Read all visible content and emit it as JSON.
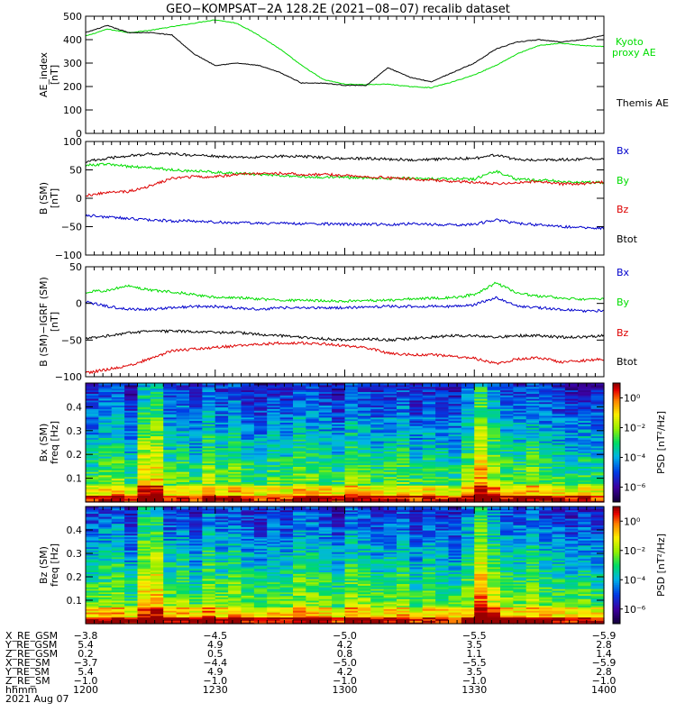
{
  "title": "GEO−KOMPSAT−2A 128.2E (2021−08−07) recalib dataset",
  "chart_data": [
    {
      "type": "line",
      "id": "ae",
      "ylabel": "AE_index [nT]",
      "ylabel_lines": [
        "AE_index",
        "[nT]"
      ],
      "ylim": [
        0,
        500
      ],
      "yticks": [
        0,
        100,
        200,
        300,
        400,
        500
      ],
      "x": [
        0,
        5,
        10,
        15,
        20,
        25,
        30,
        35,
        40,
        45,
        50,
        55,
        60,
        65,
        70,
        75,
        80,
        85,
        90,
        95,
        100,
        105,
        110,
        115,
        120
      ],
      "series": [
        {
          "name": "Kyoto proxy AE",
          "color": "#00dd00",
          "values": [
            415,
            445,
            430,
            440,
            455,
            470,
            485,
            470,
            420,
            360,
            290,
            230,
            210,
            208,
            210,
            200,
            195,
            220,
            250,
            290,
            340,
            375,
            385,
            375,
            370
          ]
        },
        {
          "name": "Themis AE",
          "color": "#000000",
          "values": [
            430,
            460,
            430,
            430,
            420,
            340,
            290,
            300,
            290,
            260,
            215,
            215,
            205,
            205,
            280,
            240,
            220,
            260,
            300,
            360,
            390,
            400,
            390,
            400,
            420
          ]
        }
      ]
    },
    {
      "type": "line",
      "id": "bsm",
      "ylabel": "B (SM) [nT]",
      "ylabel_lines": [
        "B (SM)",
        "[nT]"
      ],
      "ylim": [
        -100,
        100
      ],
      "yticks": [
        -100,
        -50,
        0,
        50,
        100
      ],
      "x": [
        0,
        5,
        10,
        15,
        20,
        25,
        30,
        35,
        40,
        45,
        50,
        55,
        60,
        65,
        70,
        75,
        80,
        85,
        90,
        95,
        100,
        105,
        110,
        115,
        120
      ],
      "series": [
        {
          "name": "Bx",
          "color": "#0000cc",
          "values": [
            -30,
            -33,
            -36,
            -38,
            -40,
            -40,
            -42,
            -43,
            -44,
            -44,
            -45,
            -45,
            -46,
            -46,
            -46,
            -45,
            -46,
            -47,
            -46,
            -38,
            -44,
            -47,
            -50,
            -52,
            -53
          ]
        },
        {
          "name": "By",
          "color": "#00dd00",
          "values": [
            58,
            60,
            56,
            54,
            50,
            48,
            46,
            44,
            42,
            40,
            38,
            37,
            37,
            36,
            35,
            35,
            34,
            34,
            34,
            48,
            33,
            32,
            30,
            28,
            28
          ]
        },
        {
          "name": "Bz",
          "color": "#dd0000",
          "values": [
            5,
            10,
            12,
            22,
            35,
            38,
            38,
            42,
            44,
            44,
            42,
            42,
            40,
            38,
            36,
            34,
            32,
            30,
            28,
            26,
            28,
            30,
            25,
            26,
            28
          ]
        },
        {
          "name": "Btot",
          "color": "#000000",
          "values": [
            65,
            70,
            75,
            78,
            78,
            76,
            74,
            72,
            72,
            74,
            74,
            72,
            70,
            70,
            69,
            68,
            68,
            70,
            70,
            76,
            68,
            68,
            68,
            69,
            70
          ]
        }
      ]
    },
    {
      "type": "line",
      "id": "bigrf",
      "ylabel": "B (SM)−IGRF (SM) [nT]",
      "ylabel_lines": [
        "B (SM)−IGRF (SM)",
        "[nT]"
      ],
      "ylim": [
        -100,
        50
      ],
      "yticks": [
        -100,
        -50,
        0,
        50
      ],
      "x": [
        0,
        5,
        10,
        15,
        20,
        25,
        30,
        35,
        40,
        45,
        50,
        55,
        60,
        65,
        70,
        75,
        80,
        85,
        90,
        95,
        100,
        105,
        110,
        115,
        120
      ],
      "series": [
        {
          "name": "Bx",
          "color": "#0000cc",
          "values": [
            2,
            -4,
            -8,
            -8,
            -6,
            -4,
            -4,
            -6,
            -8,
            -6,
            -6,
            -6,
            -6,
            -5,
            -4,
            -4,
            -4,
            -4,
            -2,
            8,
            -4,
            -6,
            -8,
            -10,
            -10
          ]
        },
        {
          "name": "By",
          "color": "#00dd00",
          "values": [
            15,
            18,
            24,
            18,
            16,
            12,
            8,
            8,
            6,
            4,
            4,
            4,
            3,
            4,
            4,
            6,
            7,
            8,
            12,
            28,
            14,
            10,
            8,
            5,
            6
          ]
        },
        {
          "name": "Bz",
          "color": "#dd0000",
          "values": [
            -95,
            -90,
            -85,
            -75,
            -65,
            -62,
            -60,
            -58,
            -56,
            -54,
            -54,
            -55,
            -58,
            -60,
            -68,
            -70,
            -70,
            -72,
            -75,
            -82,
            -76,
            -74,
            -80,
            -78,
            -76
          ]
        },
        {
          "name": "Btot",
          "color": "#000000",
          "values": [
            -48,
            -44,
            -40,
            -38,
            -38,
            -38,
            -40,
            -40,
            -42,
            -44,
            -46,
            -48,
            -50,
            -48,
            -50,
            -48,
            -46,
            -44,
            -44,
            -46,
            -44,
            -44,
            -46,
            -46,
            -44
          ]
        }
      ]
    },
    {
      "type": "heatmap",
      "id": "spec_bx",
      "ylabel": "Bx (SM) freq [Hz]",
      "ylabel_lines": [
        "Bx (SM)",
        "freq [Hz]"
      ],
      "ylim": [
        0,
        0.5
      ],
      "yticks": [
        0.1,
        0.2,
        0.3,
        0.4
      ],
      "colorbar_label": "PSD [nT²/Hz]",
      "colorbar_ticks": [
        "10⁰",
        "10⁻²",
        "10⁻⁴",
        "10⁻⁶"
      ],
      "colorbar_tick_exps": [
        0,
        -2,
        -4,
        -6
      ],
      "colorbar_range_exp": [
        -7,
        1
      ],
      "activity": [
        0.35,
        0.45,
        0.5,
        0.3,
        0.75,
        0.8,
        0.4,
        0.45,
        0.3,
        0.55,
        0.4,
        0.5,
        0.35,
        0.3,
        0.4,
        0.35,
        0.5,
        0.45,
        0.4,
        0.3,
        0.5,
        0.45,
        0.35,
        0.4,
        0.45,
        0.3,
        0.4,
        0.35,
        0.3,
        0.5,
        0.9,
        0.6,
        0.45,
        0.4,
        0.5,
        0.4,
        0.35,
        0.3,
        0.35,
        0.3
      ]
    },
    {
      "type": "heatmap",
      "id": "spec_bz",
      "ylabel": "Bz (SM) freq [Hz]",
      "ylabel_lines": [
        "Bz (SM)",
        "freq [Hz]"
      ],
      "ylim": [
        0,
        0.5
      ],
      "yticks": [
        0.1,
        0.2,
        0.3,
        0.4
      ],
      "colorbar_label": "PSD [nT²/Hz]",
      "colorbar_ticks": [
        "10⁰",
        "10⁻²",
        "10⁻⁴",
        "10⁻⁶"
      ],
      "colorbar_tick_exps": [
        0,
        -2,
        -4,
        -6
      ],
      "colorbar_range_exp": [
        -7,
        1
      ],
      "activity": [
        0.45,
        0.5,
        0.55,
        0.35,
        0.8,
        0.85,
        0.45,
        0.5,
        0.35,
        0.6,
        0.45,
        0.55,
        0.4,
        0.35,
        0.45,
        0.4,
        0.55,
        0.5,
        0.45,
        0.35,
        0.55,
        0.5,
        0.4,
        0.45,
        0.5,
        0.35,
        0.45,
        0.4,
        0.35,
        0.55,
        0.95,
        0.65,
        0.5,
        0.45,
        0.55,
        0.45,
        0.4,
        0.35,
        0.4,
        0.35
      ]
    }
  ],
  "x_axis": {
    "tick_minutes": [
      0,
      30,
      60,
      90,
      120
    ],
    "minor_step_minutes": 2
  },
  "ephemeris": {
    "labels": [
      "X_RE_GSM",
      "Y_RE_GSM",
      "Z_RE_GSM",
      "X_RE_SM",
      "Y_RE_SM",
      "Z_RE_SM",
      "hhmm",
      "2021 Aug 07"
    ],
    "columns": [
      [
        "−3.8",
        "5.4",
        "0.2",
        "−3.7",
        "5.4",
        "−1.0",
        "1200"
      ],
      [
        "−4.5",
        "4.9",
        "0.5",
        "−4.4",
        "4.9",
        "−1.0",
        "1230"
      ],
      [
        "−5.0",
        "4.2",
        "0.8",
        "−5.0",
        "4.2",
        "−1.0",
        "1300"
      ],
      [
        "−5.5",
        "3.5",
        "1.1",
        "−5.5",
        "3.5",
        "−1.0",
        "1330"
      ],
      [
        "−5.9",
        "2.8",
        "1.4",
        "−5.9",
        "2.8",
        "−1.0",
        "1400"
      ]
    ]
  }
}
